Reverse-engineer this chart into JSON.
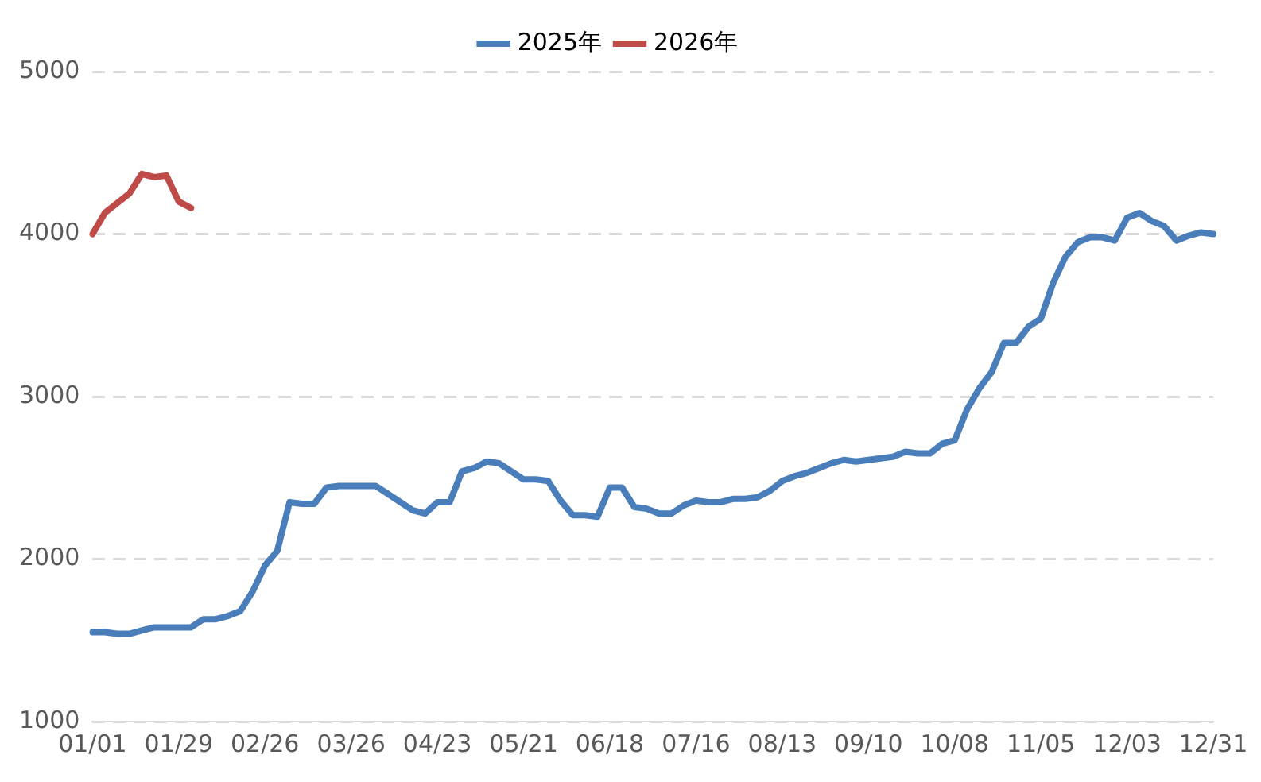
{
  "chart_data": {
    "type": "line",
    "categories": [
      "01/01",
      null,
      null,
      null,
      null,
      null,
      null,
      "01/29",
      null,
      null,
      null,
      null,
      null,
      null,
      "02/26",
      null,
      null,
      null,
      null,
      null,
      null,
      "03/26",
      null,
      null,
      null,
      null,
      null,
      null,
      "04/23",
      null,
      null,
      null,
      null,
      null,
      null,
      "05/21",
      null,
      null,
      null,
      null,
      null,
      null,
      "06/18",
      null,
      null,
      null,
      null,
      null,
      null,
      "07/16",
      null,
      null,
      null,
      null,
      null,
      null,
      "08/13",
      null,
      null,
      null,
      null,
      null,
      null,
      "09/10",
      null,
      null,
      null,
      null,
      null,
      null,
      "10/08",
      null,
      null,
      null,
      null,
      null,
      null,
      "11/05",
      null,
      null,
      null,
      null,
      null,
      null,
      "12/03",
      null,
      null,
      null,
      null,
      null,
      null,
      "12/31"
    ],
    "series": [
      {
        "name": "2025年",
        "color": "#4a7ebb",
        "values": [
          1550,
          1550,
          1540,
          1540,
          1560,
          1580,
          1580,
          1580,
          1580,
          1630,
          1630,
          1650,
          1680,
          1800,
          1960,
          2050,
          2350,
          2340,
          2340,
          2440,
          2450,
          2450,
          2450,
          2450,
          2400,
          2350,
          2300,
          2280,
          2350,
          2350,
          2540,
          2560,
          2600,
          2590,
          2540,
          2490,
          2490,
          2480,
          2360,
          2270,
          2270,
          2260,
          2440,
          2440,
          2320,
          2310,
          2280,
          2280,
          2330,
          2360,
          2350,
          2350,
          2370,
          2370,
          2380,
          2420,
          2480,
          2510,
          2530,
          2560,
          2590,
          2610,
          2600,
          2610,
          2620,
          2630,
          2660,
          2650,
          2650,
          2710,
          2730,
          2920,
          3050,
          3150,
          3330,
          3330,
          3430,
          3480,
          3700,
          3860,
          3950,
          3980,
          3980,
          3960,
          4100,
          4130,
          4080,
          4050,
          3960,
          3990,
          4010,
          4000
        ]
      },
      {
        "name": "2026年",
        "color": "#be4b48",
        "values": [
          4000,
          4130,
          4190,
          4250,
          4370,
          4350,
          4360,
          4200,
          4160,
          null,
          null,
          null,
          null,
          null,
          null,
          null,
          null,
          null,
          null,
          null,
          null,
          null,
          null,
          null,
          null,
          null,
          null,
          null,
          null,
          null,
          null,
          null,
          null,
          null,
          null,
          null,
          null,
          null,
          null,
          null,
          null,
          null,
          null,
          null,
          null,
          null,
          null,
          null,
          null,
          null,
          null,
          null,
          null,
          null,
          null,
          null,
          null,
          null,
          null,
          null,
          null,
          null,
          null,
          null,
          null,
          null,
          null,
          null,
          null,
          null,
          null,
          null,
          null,
          null,
          null,
          null,
          null,
          null,
          null,
          null,
          null,
          null,
          null,
          null,
          null,
          null,
          null,
          null,
          null,
          null,
          null,
          null
        ]
      }
    ],
    "ylim": [
      1000,
      5000
    ],
    "yticks": [
      1000,
      2000,
      3000,
      4000,
      5000
    ],
    "grid": "y",
    "legend": "top",
    "marker": "none",
    "line_style": "solid"
  }
}
